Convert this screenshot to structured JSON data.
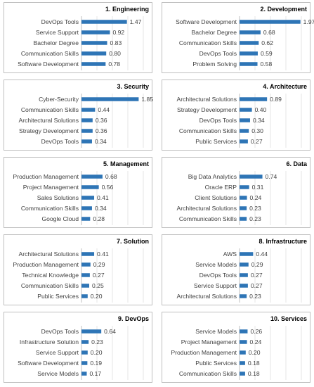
{
  "chart_data": [
    {
      "type": "bar",
      "orientation": "horizontal",
      "title": "1. Engineering",
      "categories": [
        "DevOps Tools",
        "Service Support",
        "Bachelor Degree",
        "Communication Skills",
        "Software Development"
      ],
      "values": [
        1.47,
        0.92,
        0.83,
        0.8,
        0.78
      ],
      "value_labels": [
        "1.47",
        "0.92",
        "0.83",
        "0.80",
        "0.78"
      ],
      "xlim": [
        0,
        2
      ],
      "grid": true,
      "color": "#2e75b6"
    },
    {
      "type": "bar",
      "orientation": "horizontal",
      "title": "2. Development",
      "categories": [
        "Software Development",
        "Bachelor Degree",
        "Communication Skills",
        "DevOps Tools",
        "Problem Solving"
      ],
      "values": [
        1.97,
        0.68,
        0.62,
        0.59,
        0.58
      ],
      "value_labels": [
        "1.97",
        "0.68",
        "0.62",
        "0.59",
        "0.58"
      ],
      "xlim": [
        0,
        2
      ],
      "grid": true,
      "color": "#2e75b6"
    },
    {
      "type": "bar",
      "orientation": "horizontal",
      "title": "3. Security",
      "categories": [
        "Cyber-Security",
        "Communication Skills",
        "Architectural Solutions",
        "Strategy Development",
        "DevOps Tools"
      ],
      "values": [
        1.85,
        0.44,
        0.36,
        0.36,
        0.34
      ],
      "value_labels": [
        "1.85",
        "0.44",
        "0.36",
        "0.36",
        "0.34"
      ],
      "xlim": [
        0,
        2
      ],
      "grid": true,
      "color": "#2e75b6"
    },
    {
      "type": "bar",
      "orientation": "horizontal",
      "title": "4. Architecture",
      "categories": [
        "Architectural Solutions",
        "Strategy Development",
        "DevOps Tools",
        "Communication Skills",
        "Public Services"
      ],
      "values": [
        0.89,
        0.4,
        0.34,
        0.3,
        0.27
      ],
      "value_labels": [
        "0.89",
        "0.40",
        "0.34",
        "0.30",
        "0.27"
      ],
      "xlim": [
        0,
        2
      ],
      "grid": true,
      "color": "#2e75b6"
    },
    {
      "type": "bar",
      "orientation": "horizontal",
      "title": "5. Management",
      "categories": [
        "Production Management",
        "Project Management",
        "Sales Solutions",
        "Communication Skills",
        "Google Cloud"
      ],
      "values": [
        0.68,
        0.56,
        0.41,
        0.34,
        0.28
      ],
      "value_labels": [
        "0.68",
        "0.56",
        "0.41",
        "0.34",
        "0.28"
      ],
      "xlim": [
        0,
        2
      ],
      "grid": true,
      "color": "#2e75b6"
    },
    {
      "type": "bar",
      "orientation": "horizontal",
      "title": "6. Data",
      "categories": [
        "Big Data Analytics",
        "Oracle ERP",
        "Client Solutions",
        "Architectural Solutions",
        "Communication Skills"
      ],
      "values": [
        0.74,
        0.31,
        0.24,
        0.23,
        0.23
      ],
      "value_labels": [
        "0.74",
        "0.31",
        "0.24",
        "0.23",
        "0.23"
      ],
      "xlim": [
        0,
        2
      ],
      "grid": true,
      "color": "#2e75b6"
    },
    {
      "type": "bar",
      "orientation": "horizontal",
      "title": "7. Solution",
      "categories": [
        "Architectural Solutions",
        "Production Management",
        "Technical Knowledge",
        "Communication Skills",
        "Public Services"
      ],
      "values": [
        0.41,
        0.29,
        0.27,
        0.25,
        0.2
      ],
      "value_labels": [
        "0.41",
        "0.29",
        "0.27",
        "0.25",
        "0.20"
      ],
      "xlim": [
        0,
        2
      ],
      "grid": true,
      "color": "#2e75b6"
    },
    {
      "type": "bar",
      "orientation": "horizontal",
      "title": "8. Infrastructure",
      "categories": [
        "AWS",
        "Service Models",
        "DevOps Tools",
        "Service Support",
        "Architectural Solutions"
      ],
      "values": [
        0.44,
        0.29,
        0.27,
        0.27,
        0.23
      ],
      "value_labels": [
        "0.44",
        "0.29",
        "0.27",
        "0.27",
        "0.23"
      ],
      "xlim": [
        0,
        2
      ],
      "grid": true,
      "color": "#2e75b6"
    },
    {
      "type": "bar",
      "orientation": "horizontal",
      "title": "9. DevOps",
      "categories": [
        "DevOps Tools",
        "Infrastructure Solution",
        "Service Support",
        "Software Development",
        "Service Models"
      ],
      "values": [
        0.64,
        0.23,
        0.2,
        0.19,
        0.17
      ],
      "value_labels": [
        "0.64",
        "0.23",
        "0.20",
        "0.19",
        "0.17"
      ],
      "xlim": [
        0,
        2
      ],
      "grid": true,
      "color": "#2e75b6"
    },
    {
      "type": "bar",
      "orientation": "horizontal",
      "title": "10. Services",
      "categories": [
        "Service Models",
        "Project Management",
        "Production Management",
        "Public Services",
        "Communication Skills"
      ],
      "values": [
        0.26,
        0.24,
        0.2,
        0.18,
        0.18
      ],
      "value_labels": [
        "0.26",
        "0.24",
        "0.20",
        "0.18",
        "0.18"
      ],
      "xlim": [
        0,
        2
      ],
      "grid": true,
      "color": "#2e75b6"
    }
  ]
}
